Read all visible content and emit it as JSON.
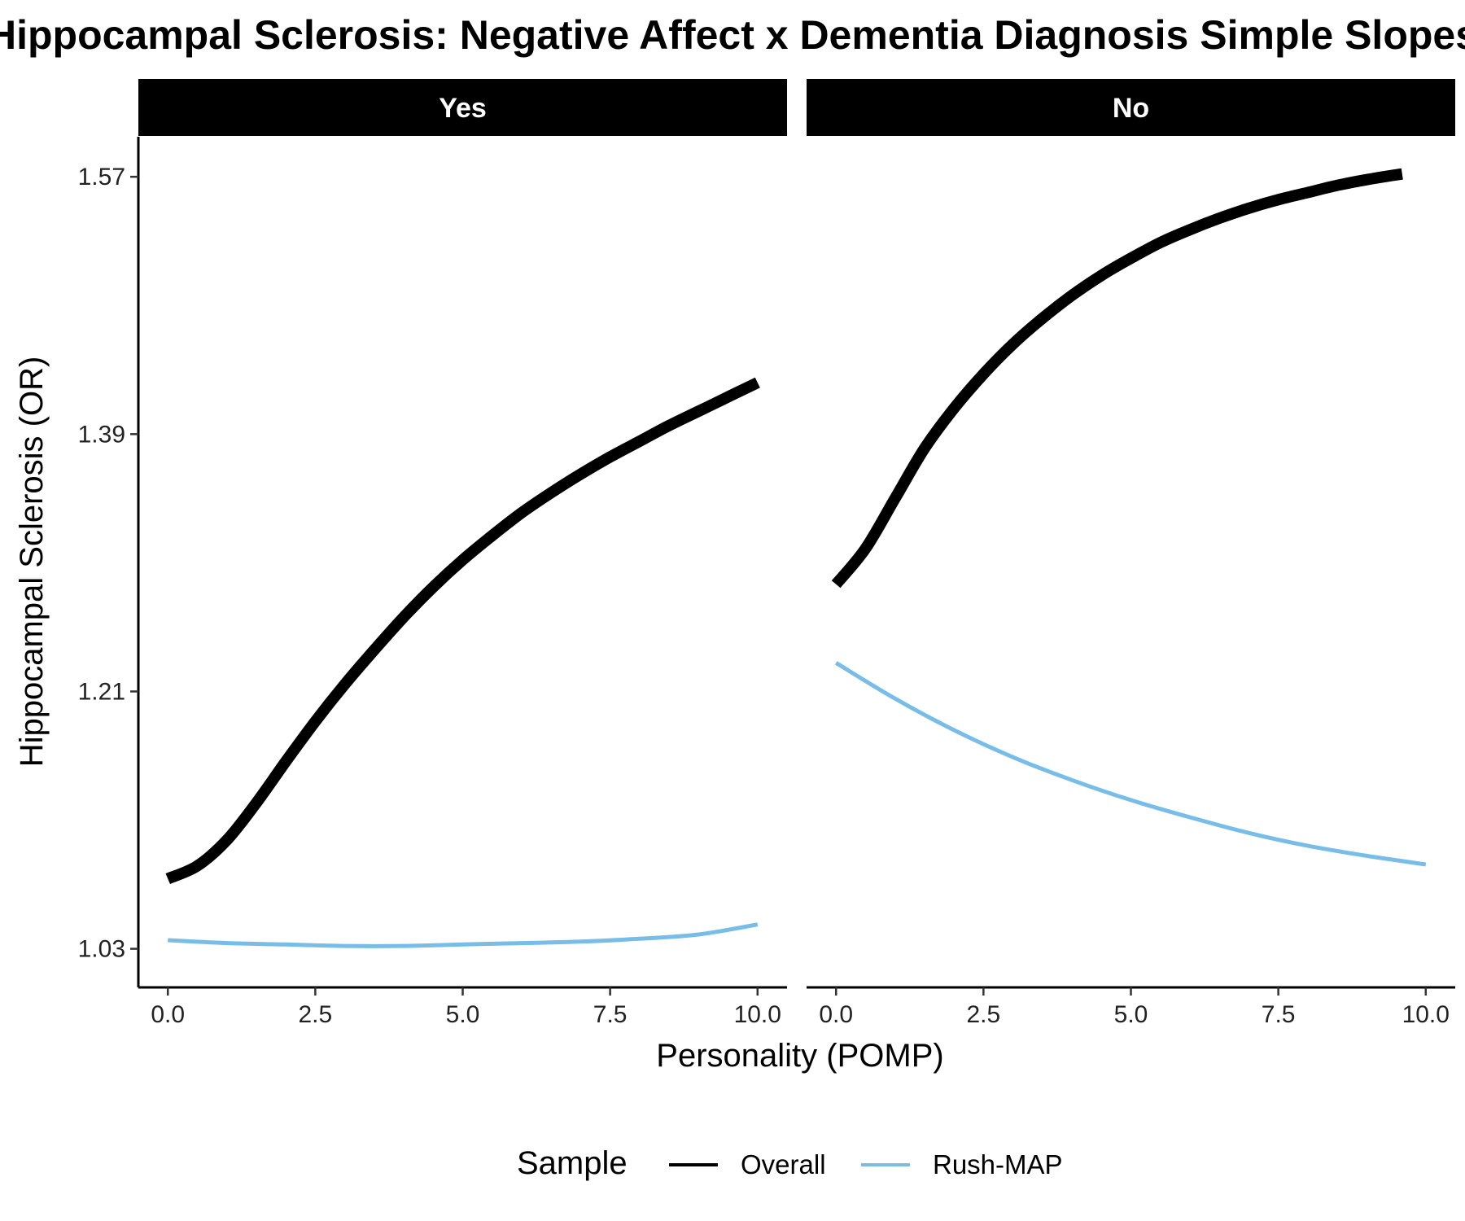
{
  "chart_data": {
    "type": "line",
    "title": "Hippocampal Sclerosis: Negative Affect x Dementia Diagnosis Simple Slopes",
    "xlabel": "Personality (POMP)",
    "ylabel": "Hippocampal Sclerosis (OR)",
    "xlim": [
      -0.5,
      10.5
    ],
    "ylim": [
      1.003,
      1.598
    ],
    "x_ticks": [
      "0.0",
      "2.5",
      "5.0",
      "7.5",
      "10.0"
    ],
    "x_tick_values": [
      0,
      2.5,
      5,
      7.5,
      10
    ],
    "y_ticks": [
      "1.03",
      "1.21",
      "1.39",
      "1.57"
    ],
    "y_tick_values": [
      1.03,
      1.21,
      1.39,
      1.57
    ],
    "grid": false,
    "legend": {
      "title": "Sample",
      "placement": "bottom",
      "entries": [
        "Overall",
        "Rush-MAP"
      ]
    },
    "facets": [
      {
        "label": "Yes",
        "series": [
          {
            "name": "Overall",
            "color": "#000000",
            "x": [
              0,
              0.5,
              1,
              1.5,
              2,
              2.5,
              3,
              3.5,
              4,
              4.5,
              5,
              5.5,
              6,
              6.5,
              7,
              7.5,
              8,
              8.5,
              9,
              9.5,
              10
            ],
            "y": [
              1.079,
              1.088,
              1.106,
              1.132,
              1.161,
              1.189,
              1.215,
              1.239,
              1.262,
              1.283,
              1.302,
              1.319,
              1.335,
              1.349,
              1.362,
              1.374,
              1.385,
              1.396,
              1.406,
              1.416,
              1.426
            ]
          },
          {
            "name": "Rush-MAP",
            "color": "#78BDE8",
            "x": [
              0,
              1,
              2,
              3,
              4,
              5,
              6,
              7,
              8,
              9,
              10
            ],
            "y": [
              1.036,
              1.034,
              1.033,
              1.032,
              1.032,
              1.033,
              1.034,
              1.035,
              1.037,
              1.04,
              1.047
            ]
          }
        ]
      },
      {
        "label": "No",
        "series": [
          {
            "name": "Overall",
            "color": "#000000",
            "x": [
              0,
              0.5,
              1,
              1.5,
              2,
              2.5,
              3,
              3.5,
              4,
              4.5,
              5,
              5.5,
              6,
              6.5,
              7,
              7.5,
              8,
              8.5,
              9,
              9.6
            ],
            "y": [
              1.285,
              1.31,
              1.345,
              1.38,
              1.408,
              1.432,
              1.453,
              1.471,
              1.487,
              1.501,
              1.513,
              1.524,
              1.533,
              1.541,
              1.548,
              1.554,
              1.559,
              1.564,
              1.568,
              1.572
            ]
          },
          {
            "name": "Rush-MAP",
            "color": "#78BDE8",
            "x": [
              0,
              1,
              2,
              3,
              4,
              5,
              6,
              7,
              8,
              9,
              10
            ],
            "y": [
              1.23,
              1.205,
              1.183,
              1.164,
              1.148,
              1.134,
              1.122,
              1.111,
              1.102,
              1.095,
              1.089
            ]
          }
        ]
      }
    ]
  }
}
